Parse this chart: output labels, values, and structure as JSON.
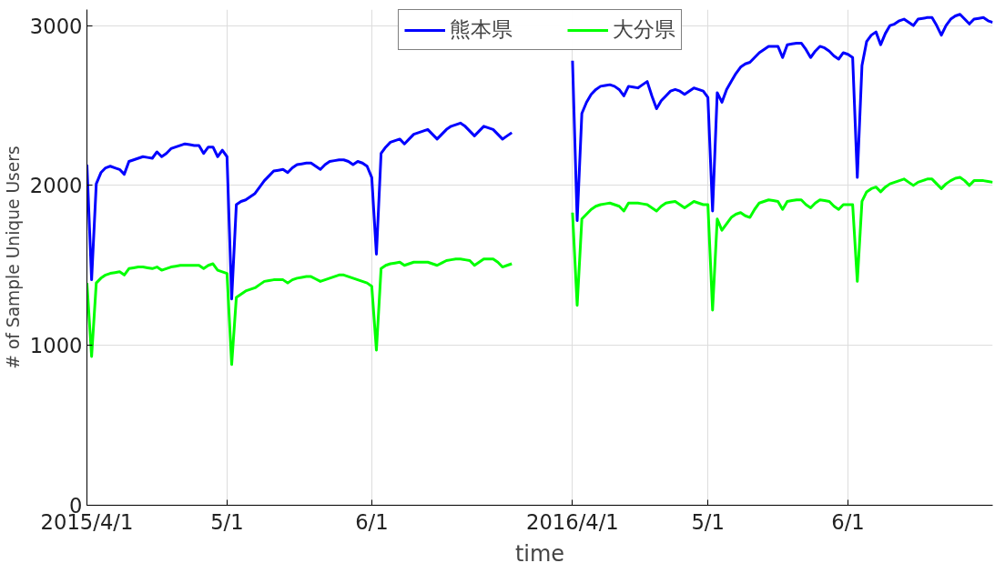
{
  "chart_data": {
    "type": "line",
    "xlabel": "time",
    "ylabel": "# of Sample Unique Users",
    "categories": [
      "2015/4/1",
      null,
      null,
      null,
      null,
      null,
      null,
      null,
      null,
      null,
      null,
      null,
      null,
      null,
      null,
      null,
      null,
      null,
      null,
      null,
      null,
      null,
      null,
      null,
      null,
      null,
      null,
      null,
      null,
      null,
      "5/1",
      null,
      null,
      null,
      null,
      null,
      null,
      null,
      null,
      null,
      null,
      null,
      null,
      null,
      null,
      null,
      null,
      null,
      null,
      null,
      null,
      null,
      null,
      null,
      null,
      null,
      null,
      null,
      null,
      null,
      null,
      "6/1",
      null,
      null,
      null,
      null,
      null,
      null,
      null,
      null,
      null,
      null,
      null,
      null,
      null,
      null,
      null,
      null,
      null,
      null,
      null,
      null,
      null,
      null,
      null,
      null,
      null,
      null,
      null,
      null,
      null,
      null,
      null,
      null,
      null,
      null,
      null,
      null,
      null,
      null,
      null,
      null,
      null,
      null,
      "2016/4/1",
      null,
      null,
      null,
      null,
      null,
      null,
      null,
      null,
      null,
      null,
      null,
      null,
      null,
      null,
      null,
      null,
      null,
      null,
      null,
      null,
      null,
      null,
      null,
      null,
      null,
      null,
      null,
      null,
      "5/1",
      null,
      null,
      null,
      null,
      null,
      null,
      null,
      null,
      null,
      null,
      null,
      null,
      null,
      null,
      null,
      null,
      null,
      null,
      null,
      null,
      null,
      null,
      null,
      null,
      null,
      null,
      null,
      null,
      null,
      "6/1",
      null,
      null,
      null,
      null,
      null,
      null,
      null,
      null,
      null,
      null,
      null,
      null,
      null,
      null,
      null,
      null,
      null,
      null,
      null,
      null,
      null,
      null,
      null,
      null,
      null,
      null,
      null,
      null,
      null,
      null,
      null
    ],
    "series": [
      {
        "name": "熊本県",
        "color": "#0000ff",
        "values": [
          2130,
          1410,
          2010,
          2080,
          2110,
          2120,
          2110,
          2100,
          2070,
          2150,
          2160,
          2170,
          2180,
          2175,
          2170,
          2210,
          2180,
          2200,
          2230,
          2240,
          2250,
          2260,
          2255,
          2250,
          2250,
          2200,
          2240,
          2240,
          2180,
          2220,
          2180,
          1290,
          1880,
          1900,
          1910,
          1930,
          1950,
          1990,
          2030,
          2060,
          2090,
          2095,
          2100,
          2080,
          2110,
          2130,
          2135,
          2140,
          2140,
          2120,
          2100,
          2130,
          2150,
          2155,
          2160,
          2160,
          2150,
          2130,
          2150,
          2140,
          2120,
          2050,
          1570,
          2200,
          2240,
          2270,
          2280,
          2290,
          2260,
          2290,
          2320,
          2330,
          2340,
          2350,
          2320,
          2290,
          2320,
          2350,
          2370,
          2380,
          2390,
          2370,
          2340,
          2310,
          2340,
          2370,
          2360,
          2350,
          2320,
          2290,
          2310,
          2330,
          null,
          null,
          null,
          null,
          null,
          null,
          null,
          null,
          null,
          null,
          null,
          null,
          2780,
          1780,
          2450,
          2520,
          2570,
          2600,
          2620,
          2625,
          2630,
          2620,
          2600,
          2560,
          2620,
          2615,
          2610,
          2630,
          2650,
          2560,
          2480,
          2530,
          2560,
          2590,
          2600,
          2590,
          2570,
          2590,
          2610,
          2600,
          2590,
          2550,
          1840,
          2580,
          2520,
          2600,
          2650,
          2700,
          2740,
          2760,
          2770,
          2800,
          2830,
          2850,
          2870,
          2870,
          2870,
          2800,
          2880,
          2885,
          2890,
          2890,
          2850,
          2800,
          2840,
          2870,
          2860,
          2840,
          2810,
          2790,
          2830,
          2820,
          2800,
          2050,
          2750,
          2900,
          2940,
          2960,
          2880,
          2950,
          3000,
          3010,
          3030,
          3040,
          3020,
          3000,
          3040,
          3045,
          3050,
          3050,
          3000,
          2940,
          3000,
          3040,
          3060,
          3070,
          3040,
          3010,
          3040,
          3045,
          3050,
          3030,
          3020
        ]
      },
      {
        "name": "大分県",
        "color": "#00ff00",
        "values": [
          1390,
          930,
          1390,
          1420,
          1440,
          1450,
          1455,
          1460,
          1440,
          1480,
          1485,
          1490,
          1490,
          1485,
          1480,
          1490,
          1470,
          1480,
          1490,
          1495,
          1500,
          1500,
          1500,
          1500,
          1500,
          1480,
          1500,
          1510,
          1470,
          1460,
          1450,
          880,
          1300,
          1320,
          1340,
          1350,
          1360,
          1380,
          1400,
          1405,
          1410,
          1410,
          1410,
          1390,
          1410,
          1420,
          1425,
          1430,
          1430,
          1415,
          1400,
          1410,
          1420,
          1430,
          1440,
          1440,
          1430,
          1420,
          1410,
          1400,
          1390,
          1370,
          970,
          1480,
          1500,
          1510,
          1515,
          1520,
          1500,
          1510,
          1520,
          1520,
          1520,
          1520,
          1510,
          1500,
          1515,
          1530,
          1535,
          1540,
          1540,
          1535,
          1530,
          1500,
          1520,
          1540,
          1540,
          1540,
          1520,
          1490,
          1500,
          1510,
          null,
          null,
          null,
          null,
          null,
          null,
          null,
          null,
          null,
          null,
          null,
          null,
          1830,
          1250,
          1790,
          1820,
          1850,
          1870,
          1880,
          1885,
          1890,
          1880,
          1870,
          1840,
          1890,
          1890,
          1890,
          1885,
          1880,
          1860,
          1840,
          1870,
          1890,
          1895,
          1900,
          1880,
          1860,
          1880,
          1900,
          1890,
          1880,
          1880,
          1220,
          1790,
          1720,
          1760,
          1800,
          1820,
          1830,
          1810,
          1800,
          1850,
          1890,
          1900,
          1910,
          1905,
          1900,
          1850,
          1900,
          1905,
          1910,
          1910,
          1880,
          1860,
          1890,
          1910,
          1905,
          1900,
          1870,
          1850,
          1880,
          1880,
          1880,
          1400,
          1900,
          1960,
          1980,
          1990,
          1960,
          1990,
          2010,
          2020,
          2030,
          2040,
          2020,
          2000,
          2020,
          2030,
          2040,
          2040,
          2010,
          1980,
          2010,
          2030,
          2045,
          2050,
          2030,
          2000,
          2030,
          2030,
          2030,
          2025,
          2020
        ]
      }
    ],
    "ylim": [
      0,
      3100
    ],
    "yticks": [
      0,
      1000,
      2000,
      3000
    ],
    "grid": true,
    "legend": "top",
    "line_style": "solid",
    "marker": "none"
  }
}
